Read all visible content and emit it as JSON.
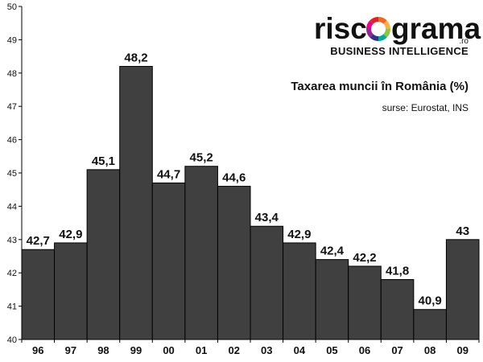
{
  "brand": {
    "logo_part1": "risc",
    "logo_part2": "grama",
    "logo_suffix": ".ro",
    "logo_tagline": "BUSINESS INTELLIGENCE"
  },
  "colors": {
    "bar_fill": "#404040",
    "bar_stroke": "#000000",
    "background": "#ffffff",
    "logo_ring": [
      "#f26522",
      "#fbb040",
      "#8dc63f",
      "#00a99d",
      "#2e3192",
      "#92278f",
      "#ec008c",
      "#ed1c24"
    ]
  },
  "chart_data": {
    "type": "bar",
    "title": "Taxarea muncii în România (%)",
    "subtitle": "surse: Eurostat, INS",
    "categories": [
      "96",
      "97",
      "98",
      "99",
      "00",
      "01",
      "02",
      "03",
      "04",
      "05",
      "06",
      "07",
      "08",
      "09"
    ],
    "values": [
      42.7,
      42.9,
      45.1,
      48.2,
      44.7,
      45.2,
      44.6,
      43.4,
      42.9,
      42.4,
      42.2,
      41.8,
      40.9,
      43
    ],
    "value_labels": [
      "42,7",
      "42,9",
      "45,1",
      "48,2",
      "44,7",
      "45,2",
      "44,6",
      "43,4",
      "42,9",
      "42,4",
      "42,2",
      "41,8",
      "40,9",
      "43"
    ],
    "ylim": [
      40,
      50
    ],
    "yticks": [
      40,
      41,
      42,
      43,
      44,
      45,
      46,
      47,
      48,
      49,
      50
    ],
    "xlabel": "",
    "ylabel": "",
    "grid": false,
    "legend": "none"
  }
}
